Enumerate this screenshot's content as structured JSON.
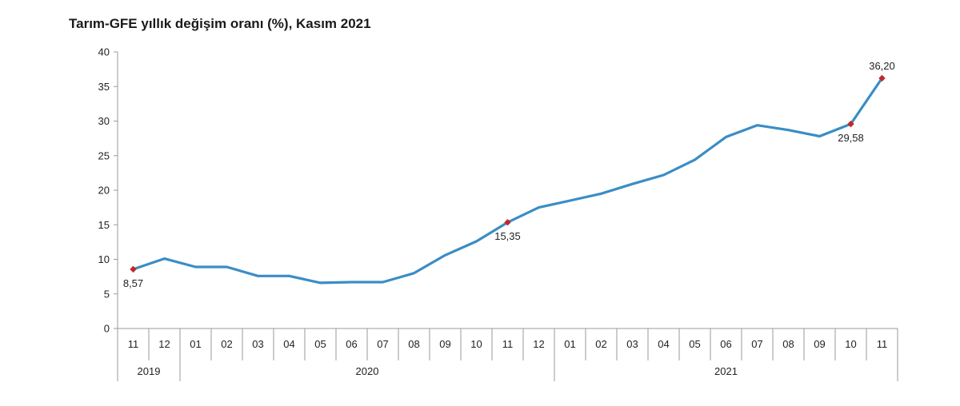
{
  "chart_data": {
    "type": "line",
    "title": "Tarım-GFE yıllık değişim oranı (%), Kasım 2021",
    "xlabel": "",
    "ylabel": "",
    "ylim": [
      0,
      40
    ],
    "yticks": [
      "0",
      "5",
      "10",
      "15",
      "20",
      "25",
      "30",
      "35",
      "40"
    ],
    "categories": [
      "11",
      "12",
      "01",
      "02",
      "03",
      "04",
      "05",
      "06",
      "07",
      "08",
      "09",
      "10",
      "11",
      "12",
      "01",
      "02",
      "03",
      "04",
      "05",
      "06",
      "07",
      "08",
      "09",
      "10",
      "11"
    ],
    "year_groups": [
      {
        "label": "2019",
        "start": 0,
        "end": 1
      },
      {
        "label": "2020",
        "start": 2,
        "end": 13
      },
      {
        "label": "2021",
        "start": 14,
        "end": 24
      }
    ],
    "series": [
      {
        "name": "Tarım-GFE",
        "color": "#3a8dc5",
        "values": [
          8.57,
          10.1,
          8.9,
          8.9,
          7.6,
          7.6,
          6.6,
          6.7,
          6.7,
          8.0,
          10.6,
          12.6,
          15.35,
          17.5,
          18.5,
          19.5,
          20.9,
          22.2,
          24.4,
          27.7,
          29.4,
          28.7,
          27.8,
          29.58,
          36.2
        ]
      }
    ],
    "highlighted_points": [
      {
        "index": 0,
        "label": "8,57",
        "position": "below"
      },
      {
        "index": 12,
        "label": "15,35",
        "position": "below"
      },
      {
        "index": 23,
        "label": "29,58",
        "position": "below"
      },
      {
        "index": 24,
        "label": "36,20",
        "position": "above"
      }
    ],
    "marker_color": "#c0282d"
  }
}
